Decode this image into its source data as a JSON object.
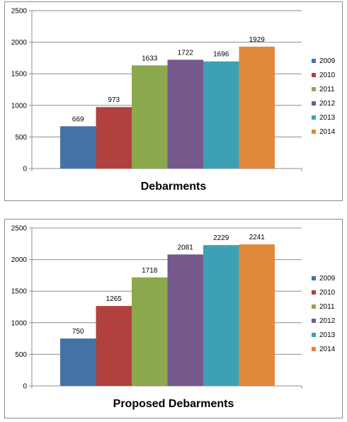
{
  "chart_data": [
    {
      "type": "bar",
      "title": "Debarments",
      "categories": [
        "2009",
        "2010",
        "2011",
        "2012",
        "2013",
        "2014"
      ],
      "values": [
        669,
        973,
        1633,
        1722,
        1696,
        1929
      ],
      "data_labels": [
        "669",
        "973",
        "1633",
        "1722",
        "1696",
        "1929"
      ],
      "ylim": [
        0,
        2500
      ],
      "yticks": [
        "0",
        "500",
        "1000",
        "1500",
        "2000",
        "2500"
      ],
      "grid": true,
      "legend_position": "right",
      "colors": [
        "#4472A6",
        "#B0413E",
        "#8CA84C",
        "#76588D",
        "#3EA0B4",
        "#E0883C"
      ]
    },
    {
      "type": "bar",
      "title": "Proposed Debarments",
      "categories": [
        "2009",
        "2010",
        "2011",
        "2012",
        "2013",
        "2014"
      ],
      "values": [
        750,
        1265,
        1718,
        2081,
        2229,
        2241
      ],
      "data_labels": [
        "750",
        "1265",
        "1718",
        "2081",
        "2229",
        "2241"
      ],
      "ylim": [
        0,
        2500
      ],
      "yticks": [
        "0",
        "500",
        "1000",
        "1500",
        "2000",
        "2500"
      ],
      "grid": true,
      "legend_position": "right",
      "colors": [
        "#4472A6",
        "#B0413E",
        "#8CA84C",
        "#76588D",
        "#3EA0B4",
        "#E0883C"
      ]
    }
  ]
}
